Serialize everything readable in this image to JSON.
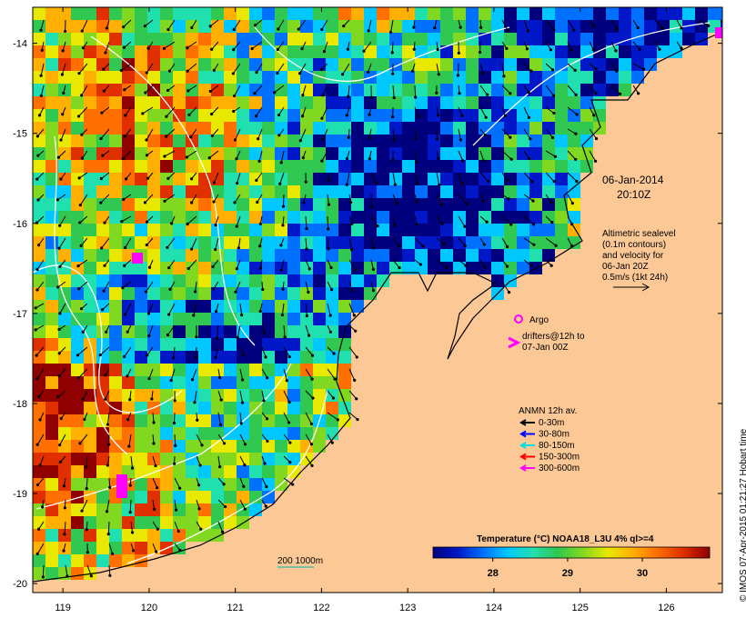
{
  "map": {
    "lon_ticks": [
      "119",
      "120",
      "121",
      "122",
      "123",
      "124",
      "125",
      "126"
    ],
    "lat_ticks": [
      "-14",
      "-15",
      "-16",
      "-17",
      "-18",
      "-19",
      "-20"
    ],
    "lon_range": [
      118.65,
      126.65
    ],
    "lat_range": [
      -20.1,
      -13.6
    ],
    "colors": {
      "land": "#fcc896",
      "coast": "#000000",
      "contour": "#ffffff"
    }
  },
  "annotations": {
    "date": "06-Jan-2014",
    "time": "20:10Z",
    "altimetry_lines": [
      "Altimetric sealevel",
      "(0.1m contours)",
      "and velocity for",
      "06-Jan 20Z",
      "0.5m/s (1kt 24h)"
    ],
    "argo_label": "Argo",
    "drifters_lines": [
      "drifters@12h to",
      "07-Jan 00Z"
    ],
    "bathy_label": "200  1000m"
  },
  "legend": {
    "title": "ANMN 12h av.",
    "items": [
      {
        "label": "0-30m",
        "color": "#000000"
      },
      {
        "label": "30-80m",
        "color": "#0000ff"
      },
      {
        "label": "80-150m",
        "color": "#00e0e0"
      },
      {
        "label": "150-300m",
        "color": "#ff0000"
      },
      {
        "label": "300-600m",
        "color": "#ff00ff"
      }
    ]
  },
  "colorbar": {
    "title": "Temperature (°C) NOAA18_L3U 4% ql>=4",
    "ticks": [
      "28",
      "29",
      "30"
    ],
    "tick_values": [
      28,
      29,
      30
    ],
    "range": [
      27.2,
      30.9
    ],
    "palette": [
      "#00007f",
      "#0018c8",
      "#0070ff",
      "#00c8ff",
      "#20e0b0",
      "#30c850",
      "#80d820",
      "#e8e800",
      "#ffb000",
      "#ff7000",
      "#e03000",
      "#900000"
    ]
  },
  "credit": "© IMOS 07-Apr-2015 01:21:27 Hobart time"
}
